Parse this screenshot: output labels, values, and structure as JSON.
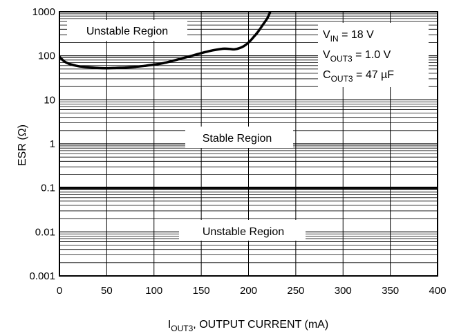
{
  "chart_data": {
    "type": "line",
    "x_scale": "linear",
    "y_scale": "log",
    "xlim": [
      0,
      400
    ],
    "ylim": [
      0.001,
      1000
    ],
    "x_ticks": [
      "0",
      "50",
      "100",
      "150",
      "200",
      "250",
      "300",
      "350",
      "400"
    ],
    "y_ticks": [
      "0.001",
      "0.01",
      "0.1",
      "1",
      "10",
      "100",
      "1000"
    ],
    "xlabel": {
      "main": "I",
      "sub": "OUT3",
      "rest": ", OUTPUT CURRENT (mA)"
    },
    "ylabel": "ESR (Ω)",
    "grid": "major and minor (log decades)",
    "series": [
      {
        "role": "upper stability boundary",
        "color": "#000000",
        "x": [
          0,
          5,
          10,
          20,
          30,
          40,
          50,
          60,
          70,
          80,
          90,
          100,
          110,
          120,
          130,
          140,
          150,
          160,
          170,
          175,
          180,
          185,
          190,
          195,
          200,
          205,
          210,
          215,
          220,
          223
        ],
        "y": [
          95,
          75,
          66,
          58,
          55,
          53,
          52,
          53,
          54,
          56,
          59,
          63,
          68,
          77,
          88,
          100,
          115,
          130,
          142,
          145,
          143,
          140,
          148,
          165,
          200,
          260,
          350,
          500,
          720,
          1000
        ]
      },
      {
        "role": "lower stability boundary",
        "color": "#000000",
        "x": [
          0,
          400
        ],
        "y": [
          0.1,
          0.1
        ]
      }
    ],
    "annotations": {
      "region_top": "Unstable Region",
      "region_middle": "Stable Region",
      "region_bottom": "Unstable Region",
      "conditions": [
        {
          "main": "V",
          "sub": "IN",
          "rest": " = 18 V"
        },
        {
          "main": "V",
          "sub": "OUT3",
          "rest": " = 1.0 V"
        },
        {
          "main": "C",
          "sub": "OUT3",
          "rest": " = 47 µF"
        }
      ]
    }
  }
}
